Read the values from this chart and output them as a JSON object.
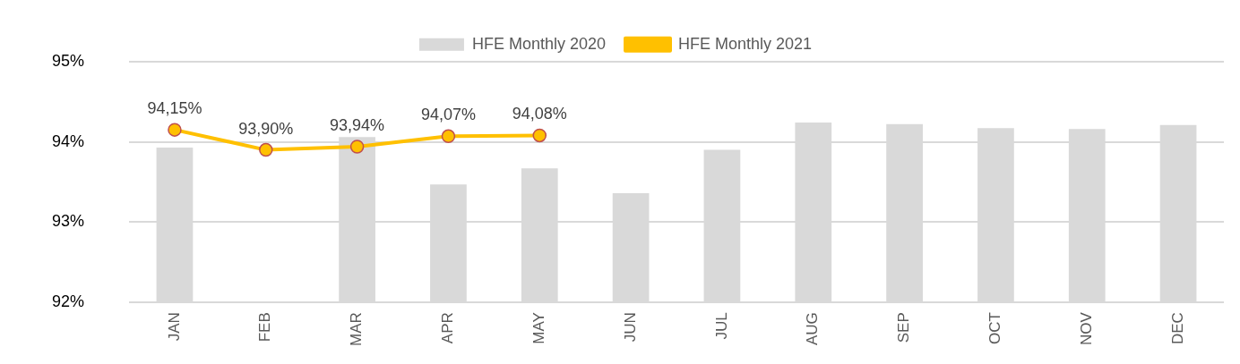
{
  "chart_data": {
    "type": "bar",
    "categories": [
      "JAN",
      "FEB",
      "MAR",
      "APR",
      "MAY",
      "JUN",
      "JUL",
      "AUG",
      "SEP",
      "OCT",
      "NOV",
      "DEC"
    ],
    "series": [
      {
        "name": "HFE Monthly 2020",
        "color": "#d9d9d9",
        "values": [
          93.93,
          null,
          94.06,
          93.47,
          93.67,
          93.36,
          93.9,
          94.24,
          94.22,
          94.17,
          94.16,
          94.21
        ]
      },
      {
        "name": "HFE Monthly 2021",
        "type": "line",
        "color": "#ffc000",
        "marker": "circle",
        "values": [
          94.15,
          93.9,
          93.94,
          94.07,
          94.08,
          null,
          null,
          null,
          null,
          null,
          null,
          null
        ],
        "value_labels": [
          "94,15%",
          "93,90%",
          "93,94%",
          "94,07%",
          "94,08%",
          null,
          null,
          null,
          null,
          null,
          null,
          null
        ]
      }
    ],
    "ylim": [
      92,
      95
    ],
    "yticks": [
      {
        "value": 92,
        "label": "92%"
      },
      {
        "value": 93,
        "label": "93%"
      },
      {
        "value": 94,
        "label": "94%"
      },
      {
        "value": 95,
        "label": "95%"
      }
    ],
    "grid": "y",
    "legend": "top"
  }
}
